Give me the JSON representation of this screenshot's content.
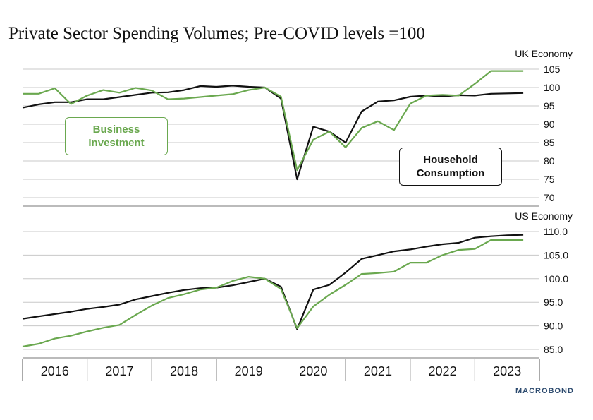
{
  "title": "Private Sector Spending Volumes; Pre-COVID levels =100",
  "brand": "MACROBOND",
  "colors": {
    "business": "#6aa84f",
    "household": "#111111",
    "grid": "#c8c8c8"
  },
  "labels": {
    "business": [
      "Business",
      "Investment"
    ],
    "household": [
      "Household",
      "Consumption"
    ]
  },
  "chart_data": [
    {
      "type": "line",
      "title": "UK Economy",
      "x_labels": [
        "2016",
        "2017",
        "2018",
        "2019",
        "2020",
        "2021",
        "2022",
        "2023"
      ],
      "x": [
        2015.5,
        2015.75,
        2016.0,
        2016.25,
        2016.5,
        2016.75,
        2017.0,
        2017.25,
        2017.5,
        2017.75,
        2018.0,
        2018.25,
        2018.5,
        2018.75,
        2019.0,
        2019.25,
        2019.5,
        2019.75,
        2020.0,
        2020.25,
        2020.5,
        2020.75,
        2021.0,
        2021.25,
        2021.5,
        2021.75,
        2022.0,
        2022.25,
        2022.5,
        2022.75,
        2023.0,
        2023.25
      ],
      "ylim": [
        70,
        105
      ],
      "yticks": [
        "70",
        "75",
        "80",
        "85",
        "90",
        "95",
        "100",
        "105"
      ],
      "ytick_values": [
        70,
        75,
        80,
        85,
        90,
        95,
        100,
        105
      ],
      "series": [
        {
          "name": "Household Consumption",
          "color": "#111111",
          "values": [
            94.5,
            95.4,
            96.0,
            96.0,
            96.8,
            96.8,
            97.4,
            98.0,
            98.6,
            98.7,
            99.3,
            100.4,
            100.2,
            100.5,
            100.2,
            100.0,
            97.0,
            75.0,
            89.3,
            88.0,
            85.0,
            93.5,
            96.2,
            96.5,
            97.5,
            97.8,
            97.6,
            97.9,
            97.8,
            98.3,
            98.4,
            98.5
          ]
        },
        {
          "name": "Business Investment",
          "color": "#6aa84f",
          "values": [
            98.3,
            98.3,
            99.8,
            95.5,
            97.8,
            99.3,
            98.6,
            99.9,
            99.2,
            96.8,
            97.0,
            97.4,
            97.8,
            98.2,
            99.3,
            100.0,
            97.5,
            77.5,
            85.8,
            88.0,
            83.7,
            89.0,
            90.8,
            88.4,
            95.6,
            97.8,
            98.0,
            97.8,
            101.0,
            104.5,
            104.5,
            104.5
          ]
        }
      ]
    },
    {
      "type": "line",
      "title": "US Economy",
      "x_labels": [
        "2016",
        "2017",
        "2018",
        "2019",
        "2020",
        "2021",
        "2022",
        "2023"
      ],
      "x": [
        2015.5,
        2015.75,
        2016.0,
        2016.25,
        2016.5,
        2016.75,
        2017.0,
        2017.25,
        2017.5,
        2017.75,
        2018.0,
        2018.25,
        2018.5,
        2018.75,
        2019.0,
        2019.25,
        2019.5,
        2019.75,
        2020.0,
        2020.25,
        2020.5,
        2020.75,
        2021.0,
        2021.25,
        2021.5,
        2021.75,
        2022.0,
        2022.25,
        2022.5,
        2022.75,
        2023.0,
        2023.25
      ],
      "ylim": [
        85,
        110
      ],
      "yticks": [
        "85.0",
        "90.0",
        "95.0",
        "100.0",
        "105.0",
        "110.0"
      ],
      "ytick_values": [
        85,
        90,
        95,
        100,
        105,
        110
      ],
      "series": [
        {
          "name": "Household Consumption",
          "color": "#111111",
          "values": [
            91.5,
            92.0,
            92.5,
            93.0,
            93.6,
            94.0,
            94.5,
            95.6,
            96.3,
            97.0,
            97.6,
            98.0,
            98.1,
            98.6,
            99.3,
            100.0,
            98.3,
            89.3,
            97.7,
            98.7,
            101.3,
            104.2,
            105.0,
            105.8,
            106.2,
            106.8,
            107.3,
            107.6,
            108.7,
            109.0,
            109.2,
            109.3
          ]
        },
        {
          "name": "Business Investment",
          "color": "#6aa84f",
          "values": [
            85.6,
            86.2,
            87.3,
            87.9,
            88.8,
            89.6,
            90.2,
            92.3,
            94.3,
            95.9,
            96.7,
            97.7,
            98.1,
            99.5,
            100.4,
            100.0,
            97.8,
            89.5,
            94.1,
            96.6,
            98.7,
            101.0,
            101.2,
            101.5,
            103.4,
            103.4,
            105.0,
            106.1,
            106.3,
            108.2,
            108.2,
            108.2
          ]
        }
      ]
    }
  ]
}
